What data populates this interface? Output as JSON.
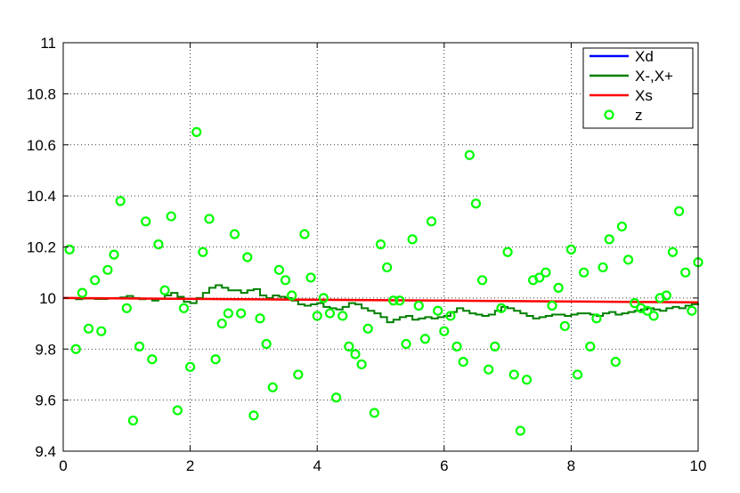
{
  "chart_data": {
    "type": "line",
    "xlim": [
      0,
      10
    ],
    "ylim": [
      9.4,
      11
    ],
    "x_ticks": [
      "0",
      "2",
      "4",
      "6",
      "8",
      "10"
    ],
    "y_ticks": [
      "9.4",
      "9.6",
      "9.8",
      "10",
      "10.2",
      "10.4",
      "10.6",
      "10.8",
      "11"
    ],
    "grid": true,
    "legend_position": "top-right",
    "series": [
      {
        "name": "Xd",
        "kind": "line",
        "color": "#0000ff",
        "x": [
          0,
          10
        ],
        "y": [
          10.0,
          9.983
        ]
      },
      {
        "name": "X-,X+",
        "kind": "step",
        "color": "#008000",
        "x": [
          0.0,
          0.1,
          0.2,
          0.3,
          0.4,
          0.5,
          0.6,
          0.7,
          0.8,
          0.9,
          1.0,
          1.1,
          1.2,
          1.3,
          1.4,
          1.5,
          1.6,
          1.7,
          1.8,
          1.9,
          2.0,
          2.1,
          2.2,
          2.3,
          2.4,
          2.5,
          2.6,
          2.7,
          2.8,
          2.9,
          3.0,
          3.1,
          3.2,
          3.3,
          3.4,
          3.5,
          3.6,
          3.7,
          3.8,
          3.9,
          4.0,
          4.1,
          4.2,
          4.3,
          4.4,
          4.5,
          4.6,
          4.7,
          4.8,
          4.9,
          5.0,
          5.1,
          5.2,
          5.3,
          5.4,
          5.5,
          5.6,
          5.7,
          5.8,
          5.9,
          6.0,
          6.1,
          6.2,
          6.3,
          6.4,
          6.5,
          6.6,
          6.7,
          6.8,
          6.9,
          7.0,
          7.1,
          7.2,
          7.3,
          7.4,
          7.5,
          7.6,
          7.7,
          7.8,
          7.9,
          8.0,
          8.1,
          8.2,
          8.3,
          8.4,
          8.5,
          8.6,
          8.7,
          8.8,
          8.9,
          9.0,
          9.1,
          9.2,
          9.3,
          9.4,
          9.5,
          9.6,
          9.7,
          9.8,
          9.9,
          10.0
        ],
        "y": [
          10.0,
          10.0,
          9.995,
          9.998,
          9.998,
          9.996,
          9.996,
          9.998,
          10.0,
          10.002,
          10.008,
          10.0,
          9.995,
          9.998,
          9.99,
          9.997,
          10.01,
          10.02,
          10.005,
          9.985,
          9.98,
          10.0,
          10.02,
          10.04,
          10.05,
          10.04,
          10.03,
          10.03,
          10.02,
          10.03,
          10.035,
          10.01,
          10.0,
          10.01,
          10.005,
          10.0,
          9.99,
          9.975,
          9.97,
          9.975,
          9.98,
          9.965,
          9.96,
          9.955,
          9.965,
          9.98,
          9.975,
          9.96,
          9.95,
          9.94,
          9.925,
          9.905,
          9.915,
          9.925,
          9.93,
          9.915,
          9.92,
          9.925,
          9.92,
          9.925,
          9.93,
          9.945,
          9.96,
          9.95,
          9.94,
          9.935,
          9.93,
          9.935,
          9.95,
          9.965,
          9.96,
          9.95,
          9.94,
          9.93,
          9.92,
          9.925,
          9.93,
          9.935,
          9.935,
          9.93,
          9.935,
          9.94,
          9.94,
          9.935,
          9.93,
          9.94,
          9.945,
          9.935,
          9.94,
          9.945,
          9.95,
          9.955,
          9.96,
          9.955,
          9.95,
          9.96,
          9.965,
          9.96,
          9.97,
          9.975,
          9.98
        ]
      },
      {
        "name": "Xs",
        "kind": "line",
        "color": "#ff0000",
        "x": [
          0,
          10
        ],
        "y": [
          10.0,
          9.983
        ]
      },
      {
        "name": "z",
        "kind": "scatter",
        "color": "#00ff00",
        "x": [
          0.1,
          0.2,
          0.3,
          0.4,
          0.5,
          0.6,
          0.7,
          0.8,
          0.9,
          1.0,
          1.1,
          1.2,
          1.3,
          1.4,
          1.5,
          1.6,
          1.7,
          1.8,
          1.9,
          2.0,
          2.1,
          2.2,
          2.3,
          2.4,
          2.5,
          2.6,
          2.7,
          2.8,
          2.9,
          3.0,
          3.1,
          3.2,
          3.3,
          3.4,
          3.5,
          3.6,
          3.7,
          3.8,
          3.9,
          4.0,
          4.1,
          4.2,
          4.3,
          4.4,
          4.5,
          4.6,
          4.7,
          4.8,
          4.9,
          5.0,
          5.1,
          5.2,
          5.3,
          5.4,
          5.5,
          5.6,
          5.7,
          5.8,
          5.9,
          6.0,
          6.1,
          6.2,
          6.3,
          6.4,
          6.5,
          6.6,
          6.7,
          6.8,
          6.9,
          7.0,
          7.1,
          7.2,
          7.3,
          7.4,
          7.5,
          7.6,
          7.7,
          7.8,
          7.9,
          8.0,
          8.1,
          8.2,
          8.3,
          8.4,
          8.5,
          8.6,
          8.7,
          8.8,
          8.9,
          9.0,
          9.1,
          9.2,
          9.3,
          9.4,
          9.5,
          9.6,
          9.7,
          9.8,
          9.9,
          10.0
        ],
        "y": [
          10.19,
          9.8,
          10.02,
          9.88,
          10.07,
          9.87,
          10.11,
          10.17,
          10.38,
          9.96,
          9.52,
          9.81,
          10.3,
          9.76,
          10.21,
          10.03,
          10.32,
          9.56,
          9.96,
          9.73,
          10.65,
          10.18,
          10.31,
          9.76,
          9.9,
          9.94,
          10.25,
          9.94,
          10.16,
          9.54,
          9.92,
          9.82,
          9.65,
          10.11,
          10.07,
          10.01,
          9.7,
          10.25,
          10.08,
          9.93,
          10.0,
          9.94,
          9.61,
          9.93,
          9.81,
          9.78,
          9.74,
          9.88,
          9.55,
          10.21,
          10.12,
          9.99,
          9.99,
          9.82,
          10.23,
          9.97,
          9.84,
          10.3,
          9.95,
          9.87,
          9.93,
          9.81,
          9.75,
          10.56,
          10.37,
          10.07,
          9.72,
          9.81,
          9.96,
          10.18,
          9.7,
          9.48,
          9.68,
          10.07,
          10.08,
          10.1,
          9.97,
          10.04,
          9.89,
          10.19,
          9.7,
          10.1,
          9.81,
          9.92,
          10.12,
          10.23,
          9.75,
          10.28,
          10.15,
          9.98,
          9.96,
          9.95,
          9.93,
          10.0,
          10.01,
          10.18,
          10.34,
          10.1,
          9.95,
          10.14
        ]
      }
    ]
  }
}
